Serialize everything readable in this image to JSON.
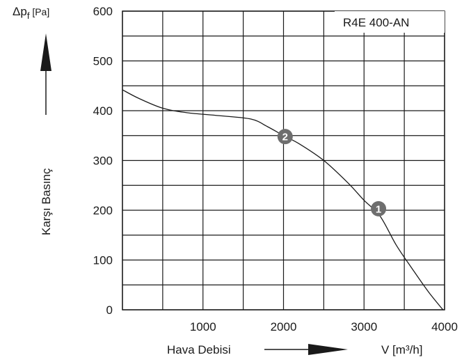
{
  "chart_data": {
    "type": "line",
    "title": "R4E 400-AN",
    "xlabel": "Hava Debisi",
    "x_unit_label": "V [m³/h]",
    "ylabel": "Karşı Basınç",
    "y_unit_label": "Δpf [Pa]",
    "xlim": [
      0,
      4000
    ],
    "ylim": [
      0,
      600
    ],
    "x_ticks": [
      0,
      1000,
      2000,
      3000,
      4000
    ],
    "y_ticks": [
      0,
      100,
      200,
      300,
      400,
      500,
      600
    ],
    "grid": true,
    "series": [
      {
        "name": "",
        "color": "#1a1a1a",
        "x": [
          0,
          200,
          500,
          800,
          1200,
          1600,
          1800,
          2000,
          2200,
          2500,
          2800,
          3000,
          3200,
          3400,
          3600,
          3800,
          3980
        ],
        "y": [
          442,
          425,
          405,
          396,
          390,
          383,
          368,
          350,
          333,
          300,
          255,
          220,
          188,
          130,
          82,
          36,
          0
        ]
      }
    ],
    "annotations": [
      {
        "label": "1",
        "x": 3180,
        "y": 203
      },
      {
        "label": "2",
        "x": 2020,
        "y": 348
      }
    ]
  }
}
